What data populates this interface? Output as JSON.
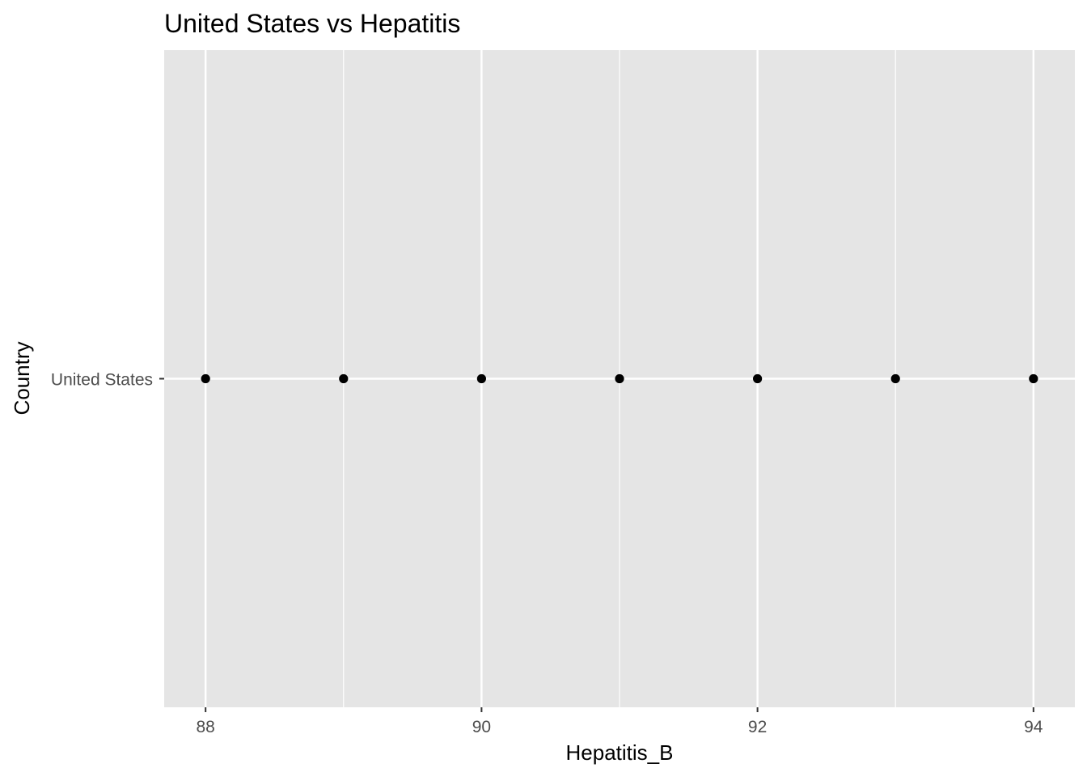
{
  "chart_data": {
    "type": "scatter",
    "title": "United States vs Hepatitis",
    "xlabel": "Hepatitis_B",
    "ylabel": "Country",
    "xlim": [
      87.7,
      94.3
    ],
    "x_ticks": [
      88,
      90,
      92,
      94
    ],
    "x_minor": [
      89,
      91,
      93
    ],
    "categories": [
      "United States"
    ],
    "grid": true,
    "background": "#e5e5e5",
    "grid_color": "#ffffff",
    "point_color": "#000000",
    "points": [
      {
        "x": 88,
        "y": "United States"
      },
      {
        "x": 89,
        "y": "United States"
      },
      {
        "x": 90,
        "y": "United States"
      },
      {
        "x": 91,
        "y": "United States"
      },
      {
        "x": 92,
        "y": "United States"
      },
      {
        "x": 93,
        "y": "United States"
      },
      {
        "x": 94,
        "y": "United States"
      }
    ]
  }
}
